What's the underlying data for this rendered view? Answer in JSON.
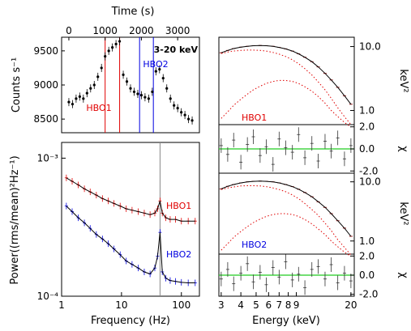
{
  "chart_data": [
    {
      "panel": "lightcurve",
      "type": "scatter",
      "xlabel": "Time (s)",
      "ylabel": "Counts s⁻¹",
      "energy_band": "3-20 keV",
      "xlim": [
        -200,
        3600
      ],
      "ylim": [
        8300,
        9700
      ],
      "x_ticks": [
        "0",
        "1000",
        "2000",
        "3000"
      ],
      "y_ticks": [
        "8500",
        "9000",
        "9500"
      ],
      "regions": [
        {
          "name": "HBO1",
          "start": 1000,
          "end": 1400,
          "color": "#e00000"
        },
        {
          "name": "HBO2",
          "start": 1950,
          "end": 2330,
          "color": "#0000e0"
        }
      ],
      "x": [
        0,
        100,
        200,
        300,
        400,
        500,
        600,
        700,
        800,
        900,
        1000,
        1100,
        1200,
        1300,
        1400,
        1500,
        1600,
        1700,
        1800,
        1900,
        2000,
        2100,
        2200,
        2300,
        2400,
        2500,
        2600,
        2700,
        2800,
        2900,
        3000,
        3100,
        3200,
        3300,
        3400
      ],
      "y": [
        8750,
        8720,
        8800,
        8830,
        8800,
        8880,
        8950,
        9000,
        9120,
        9250,
        9420,
        9500,
        9550,
        9600,
        9640,
        9150,
        9050,
        8950,
        8900,
        8870,
        8850,
        8820,
        8800,
        8900,
        9200,
        9230,
        9100,
        8950,
        8800,
        8700,
        8660,
        8600,
        8560,
        8500,
        8480
      ]
    },
    {
      "panel": "power-spectra",
      "type": "scatter",
      "xlabel": "Frequency (Hz)",
      "ylabel": "Power((rms/mean)²Hz⁻¹)",
      "xscale": "log",
      "yscale": "log",
      "xlim": [
        1,
        200
      ],
      "ylim": [
        0.0001,
        0.0013
      ],
      "x_ticks": [
        "1",
        "10",
        "100"
      ],
      "y_ticks": [
        "10⁻⁴",
        "10⁻³"
      ],
      "qpo_frequency": 44,
      "series": [
        {
          "name": "HBO1",
          "color": "#e00000",
          "x": [
            1.2,
            1.5,
            1.9,
            2.4,
            3,
            3.8,
            4.8,
            6,
            7.5,
            9.5,
            12,
            15,
            19,
            24,
            30,
            36,
            40,
            44,
            48,
            55,
            65,
            80,
            100,
            130,
            170
          ],
          "y": [
            0.00072,
            0.00068,
            0.00064,
            0.0006,
            0.00057,
            0.00054,
            0.00051,
            0.00049,
            0.00047,
            0.00045,
            0.00043,
            0.00042,
            0.00041,
            0.0004,
            0.00039,
            0.0004,
            0.00043,
            0.00049,
            0.0004,
            0.00037,
            0.00036,
            0.00036,
            0.00035,
            0.00035,
            0.00035
          ]
        },
        {
          "name": "HBO2",
          "color": "#0000e0",
          "x": [
            1.2,
            1.5,
            1.9,
            2.4,
            3,
            3.8,
            4.8,
            6,
            7.5,
            9.5,
            12,
            15,
            19,
            24,
            30,
            36,
            40,
            44,
            48,
            55,
            65,
            80,
            100,
            130,
            170
          ],
          "y": [
            0.00045,
            0.00041,
            0.00037,
            0.00034,
            0.00031,
            0.00028,
            0.00026,
            0.00024,
            0.00022,
            0.0002,
            0.00018,
            0.00017,
            0.00016,
            0.00015,
            0.000145,
            0.00016,
            0.000195,
            0.00029,
            0.00015,
            0.000135,
            0.00013,
            0.000128,
            0.000126,
            0.000125,
            0.000125
          ]
        }
      ]
    },
    {
      "panel": "spectra",
      "type": "line",
      "xlabel": "Energy (keV)",
      "xscale": "log",
      "xlim": [
        2.9,
        21
      ],
      "x_ticks": [
        "3",
        "4",
        "5",
        "6",
        "7",
        "8",
        "9",
        "20"
      ],
      "spectrum_ylabel": "keV²",
      "spectrum_ylim": [
        0.6,
        14
      ],
      "spectrum_yticks": [
        "1.0",
        "10.0"
      ],
      "residual_ylabel": "χ",
      "residual_ylim": [
        -2.2,
        2.2
      ],
      "residual_yticks": [
        "2.0",
        "0.0",
        "-2.0"
      ],
      "energy": [
        3,
        3.3,
        3.6,
        4,
        4.4,
        4.8,
        5.3,
        5.8,
        6.4,
        7,
        7.7,
        8.5,
        9.3,
        10.2,
        11.3,
        12.4,
        13.7,
        15,
        16.5,
        18.2,
        20
      ],
      "spectra": [
        {
          "name": "HBO1",
          "color": "#e00000",
          "total": [
            8.0,
            8.7,
            9.3,
            9.8,
            10.1,
            10.3,
            10.4,
            10.3,
            10.1,
            9.7,
            9.2,
            8.5,
            7.7,
            6.8,
            5.8,
            4.8,
            3.8,
            3.0,
            2.3,
            1.7,
            1.25
          ],
          "component1": [
            7.8,
            8.2,
            8.5,
            8.7,
            8.8,
            8.8,
            8.7,
            8.5,
            8.1,
            7.6,
            7.0,
            6.2,
            5.4,
            4.5,
            3.6,
            2.8,
            2.1,
            1.55,
            1.1,
            0.8,
            0.6
          ],
          "component2": [
            0.75,
            0.95,
            1.2,
            1.5,
            1.8,
            2.1,
            2.4,
            2.65,
            2.85,
            2.95,
            2.95,
            2.85,
            2.65,
            2.35,
            2.0,
            1.65,
            1.3,
            1.0,
            0.8,
            0.65,
            0.55
          ],
          "residuals": [
            0.3,
            -0.5,
            0.8,
            -1.2,
            0.4,
            1.1,
            -0.6,
            0.2,
            -1.4,
            0.9,
            0.1,
            -0.3,
            1.3,
            -0.8,
            0.5,
            -1.1,
            0.7,
            -0.2,
            1.0,
            -0.9,
            0.3
          ]
        },
        {
          "name": "HBO2",
          "color": "#0000e0",
          "total": [
            7.6,
            8.4,
            9.0,
            9.6,
            10.0,
            10.2,
            10.3,
            10.2,
            10.0,
            9.6,
            9.0,
            8.3,
            7.5,
            6.6,
            5.6,
            4.6,
            3.7,
            2.9,
            2.2,
            1.65,
            1.2
          ],
          "component1": [
            7.4,
            7.9,
            8.2,
            8.5,
            8.6,
            8.6,
            8.5,
            8.3,
            7.9,
            7.4,
            6.8,
            6.0,
            5.2,
            4.3,
            3.4,
            2.7,
            2.0,
            1.5,
            1.05,
            0.78,
            0.58
          ],
          "component2": [
            0.7,
            0.9,
            1.15,
            1.45,
            1.75,
            2.05,
            2.35,
            2.6,
            2.8,
            2.9,
            2.9,
            2.8,
            2.6,
            2.3,
            1.95,
            1.6,
            1.28,
            1.0,
            0.8,
            0.65,
            0.55
          ],
          "residuals": [
            -0.4,
            0.6,
            -0.9,
            0.2,
            1.2,
            -0.7,
            0.3,
            -1.0,
            0.8,
            -0.2,
            1.4,
            -0.5,
            0.1,
            -1.3,
            0.6,
            0.9,
            -0.4,
            1.1,
            -0.8,
            0.2,
            -0.6
          ]
        }
      ]
    }
  ]
}
